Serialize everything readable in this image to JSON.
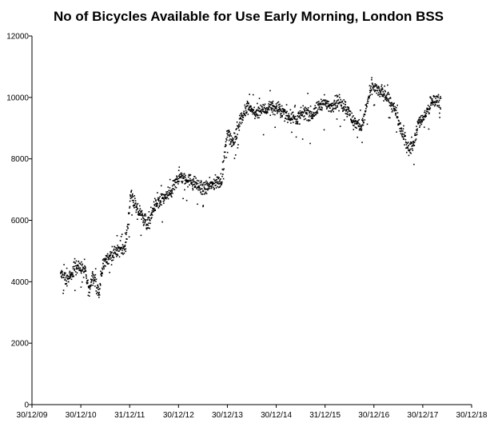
{
  "chart_data": {
    "type": "scatter",
    "title": "No of Bicycles Available for Use Early Morning, London BSS",
    "xlabel": "",
    "ylabel": "",
    "xlim": [
      "2009-12-30",
      "2018-12-30"
    ],
    "ylim": [
      0,
      12000
    ],
    "x_ticks": [
      "30/12/09",
      "30/12/10",
      "31/12/11",
      "30/12/12",
      "30/12/13",
      "30/12/14",
      "31/12/15",
      "30/12/16",
      "30/12/17",
      "30/12/18"
    ],
    "y_ticks": [
      "0",
      "2000",
      "4000",
      "6000",
      "8000",
      "10000",
      "12000"
    ],
    "grid": false,
    "legend": "none",
    "marker_color": "#000000",
    "series": [
      {
        "points_approx_trend": [
          [
            "2010-08-01",
            4250
          ],
          [
            "2010-09-15",
            4050
          ],
          [
            "2010-10-20",
            4150
          ],
          [
            "2010-11-15",
            4550
          ],
          [
            "2011-01-01",
            4450
          ],
          [
            "2011-02-01",
            4300
          ],
          [
            "2011-03-01",
            3700
          ],
          [
            "2011-04-01",
            4250
          ],
          [
            "2011-05-15",
            3600
          ],
          [
            "2011-06-15",
            4600
          ],
          [
            "2011-08-01",
            4800
          ],
          [
            "2011-10-01",
            5000
          ],
          [
            "2011-12-01",
            5200
          ],
          [
            "2012-01-10",
            6900
          ],
          [
            "2012-02-15",
            6400
          ],
          [
            "2012-04-01",
            6150
          ],
          [
            "2012-05-15",
            5850
          ],
          [
            "2012-07-01",
            6450
          ],
          [
            "2012-09-01",
            6700
          ],
          [
            "2012-11-01",
            6900
          ],
          [
            "2013-01-01",
            7400
          ],
          [
            "2013-03-01",
            7350
          ],
          [
            "2013-05-01",
            7200
          ],
          [
            "2013-07-01",
            7000
          ],
          [
            "2013-09-01",
            7150
          ],
          [
            "2013-11-15",
            7300
          ],
          [
            "2014-01-01",
            8900
          ],
          [
            "2014-02-15",
            8500
          ],
          [
            "2014-04-01",
            9200
          ],
          [
            "2014-06-01",
            9700
          ],
          [
            "2014-08-01",
            9450
          ],
          [
            "2014-10-01",
            9600
          ],
          [
            "2014-12-01",
            9700
          ],
          [
            "2015-02-01",
            9550
          ],
          [
            "2015-04-01",
            9400
          ],
          [
            "2015-06-01",
            9300
          ],
          [
            "2015-08-01",
            9500
          ],
          [
            "2015-10-01",
            9450
          ],
          [
            "2015-12-01",
            9800
          ],
          [
            "2016-02-01",
            9700
          ],
          [
            "2016-04-01",
            9900
          ],
          [
            "2016-06-01",
            9700
          ],
          [
            "2016-08-01",
            9200
          ],
          [
            "2016-10-01",
            9050
          ],
          [
            "2016-12-15",
            10400
          ],
          [
            "2017-02-01",
            10200
          ],
          [
            "2017-04-01",
            10100
          ],
          [
            "2017-06-01",
            9600
          ],
          [
            "2017-08-01",
            8800
          ],
          [
            "2017-09-15",
            8300
          ],
          [
            "2017-10-20",
            8500
          ],
          [
            "2017-12-01",
            9200
          ],
          [
            "2018-01-15",
            9400
          ],
          [
            "2018-03-01",
            9800
          ],
          [
            "2018-04-15",
            9950
          ],
          [
            "2018-05-15",
            9750
          ]
        ]
      }
    ]
  }
}
